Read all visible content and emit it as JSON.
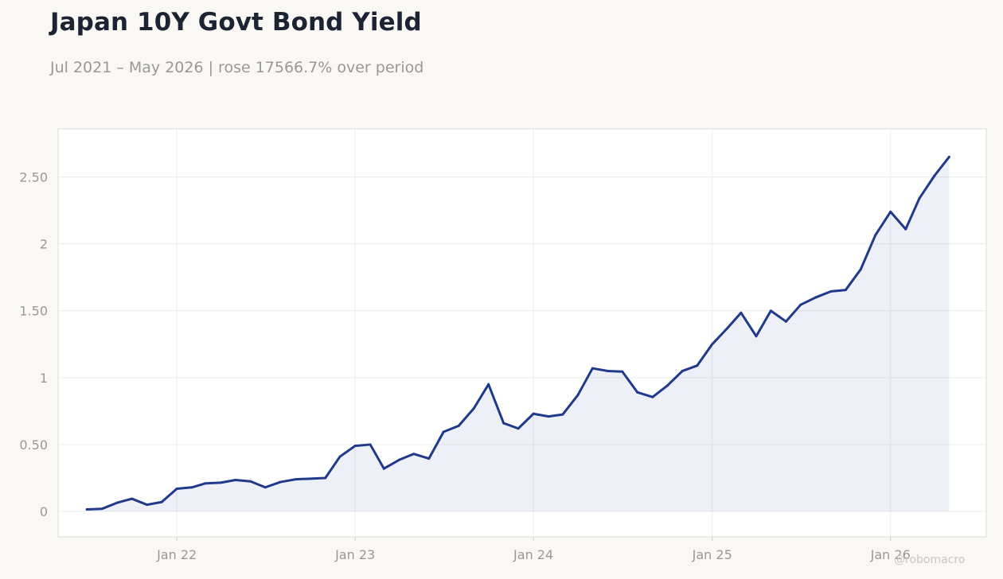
{
  "header": {
    "title": "Japan 10Y Govt Bond Yield",
    "subtitle": "Jul 2021 – May 2026 | rose 17566.7% over period"
  },
  "watermark": "@robomacro",
  "colors": {
    "line": "#1f3a8a",
    "fill": "#1f3a8a",
    "background": "#f9f8f5",
    "plot_background": "#ffffff",
    "grid": "#ececec",
    "tick_text": "#9a9893",
    "title": "#1c2333"
  },
  "chart_data": {
    "type": "area",
    "title": "Japan 10Y Govt Bond Yield",
    "subtitle": "Jul 2021 – May 2026 | rose 17566.7% over period",
    "xlabel": "",
    "ylabel": "",
    "ylim": [
      -0.19,
      2.86
    ],
    "xlim": [
      "2021-05-03",
      "2026-07-16"
    ],
    "grid": true,
    "legend": "none",
    "x_ticks": [
      {
        "date": "2022-01-01",
        "label": "Jan 22"
      },
      {
        "date": "2023-01-01",
        "label": "Jan 23"
      },
      {
        "date": "2024-01-01",
        "label": "Jan 24"
      },
      {
        "date": "2025-01-01",
        "label": "Jan 25"
      },
      {
        "date": "2026-01-01",
        "label": "Jan 26"
      }
    ],
    "y_ticks": [
      {
        "value": 0,
        "label": "0"
      },
      {
        "value": 0.5,
        "label": "0.50"
      },
      {
        "value": 1,
        "label": "1"
      },
      {
        "value": 1.5,
        "label": "1.50"
      },
      {
        "value": 2,
        "label": "2"
      },
      {
        "value": 2.5,
        "label": "2.50"
      }
    ],
    "series": [
      {
        "x": [
          "2021-07-01",
          "2021-08-01",
          "2021-09-01",
          "2021-10-01",
          "2021-11-01",
          "2021-12-01",
          "2022-01-01",
          "2022-02-01",
          "2022-03-01",
          "2022-04-01",
          "2022-05-01",
          "2022-06-01",
          "2022-07-01",
          "2022-08-01",
          "2022-09-01",
          "2022-10-01",
          "2022-11-01",
          "2022-12-01",
          "2023-01-01",
          "2023-02-01",
          "2023-03-01",
          "2023-04-01",
          "2023-05-01",
          "2023-06-01",
          "2023-07-01",
          "2023-08-01",
          "2023-09-01",
          "2023-10-01",
          "2023-11-01",
          "2023-12-01",
          "2024-01-01",
          "2024-02-01",
          "2024-03-01",
          "2024-04-01",
          "2024-05-01",
          "2024-06-01",
          "2024-07-01",
          "2024-08-01",
          "2024-09-01",
          "2024-10-01",
          "2024-11-01",
          "2024-12-01",
          "2025-01-01",
          "2025-02-01",
          "2025-03-01",
          "2025-04-01",
          "2025-05-01",
          "2025-06-01",
          "2025-07-01",
          "2025-08-01",
          "2025-09-01",
          "2025-10-01",
          "2025-11-01",
          "2025-12-01",
          "2026-01-01",
          "2026-02-01",
          "2026-03-01",
          "2026-04-01",
          "2026-05-01"
        ],
        "values": [
          0.015,
          0.02,
          0.065,
          0.095,
          0.05,
          0.07,
          0.17,
          0.18,
          0.21,
          0.215,
          0.235,
          0.225,
          0.18,
          0.22,
          0.24,
          0.245,
          0.25,
          0.41,
          0.49,
          0.5,
          0.32,
          0.385,
          0.43,
          0.395,
          0.595,
          0.64,
          0.77,
          0.95,
          0.66,
          0.62,
          0.73,
          0.71,
          0.725,
          0.87,
          1.07,
          1.05,
          1.045,
          0.89,
          0.855,
          0.94,
          1.05,
          1.09,
          1.25,
          1.37,
          1.485,
          1.31,
          1.5,
          1.42,
          1.545,
          1.6,
          1.645,
          1.655,
          1.81,
          2.065,
          2.24,
          2.11,
          2.34,
          2.51,
          2.65
        ]
      }
    ]
  }
}
